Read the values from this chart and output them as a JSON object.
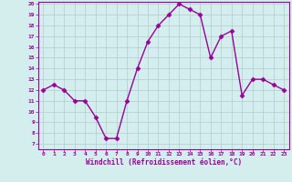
{
  "x": [
    0,
    1,
    2,
    3,
    4,
    5,
    6,
    7,
    8,
    9,
    10,
    11,
    12,
    13,
    14,
    15,
    16,
    17,
    18,
    19,
    20,
    21,
    22,
    23
  ],
  "y": [
    12,
    12.5,
    12,
    11,
    11,
    9.5,
    7.5,
    7.5,
    11,
    14,
    16.5,
    18,
    19,
    20,
    19.5,
    19,
    15,
    17,
    17.5,
    11.5,
    13,
    13,
    12.5,
    12
  ],
  "line_color": "#990099",
  "marker": "D",
  "marker_size": 2.5,
  "bg_color": "#d4eeed",
  "grid_color": "#b0cccc",
  "xlabel": "Windchill (Refroidissement éolien,°C)",
  "xlabel_color": "#990099",
  "tick_color": "#990099",
  "label_color": "#990099",
  "ylim": [
    7,
    20
  ],
  "yticks": [
    7,
    8,
    9,
    10,
    11,
    12,
    13,
    14,
    15,
    16,
    17,
    18,
    19,
    20
  ],
  "xlim": [
    -0.5,
    23.5
  ],
  "xticks": [
    0,
    1,
    2,
    3,
    4,
    5,
    6,
    7,
    8,
    9,
    10,
    11,
    12,
    13,
    14,
    15,
    16,
    17,
    18,
    19,
    20,
    21,
    22,
    23
  ],
  "xtick_labels": [
    "0",
    "1",
    "2",
    "3",
    "4",
    "5",
    "6",
    "7",
    "8",
    "9",
    "10",
    "11",
    "12",
    "13",
    "14",
    "15",
    "16",
    "17",
    "18",
    "19",
    "20",
    "21",
    "22",
    "23"
  ],
  "spine_color": "#990099",
  "linewidth": 1.0
}
